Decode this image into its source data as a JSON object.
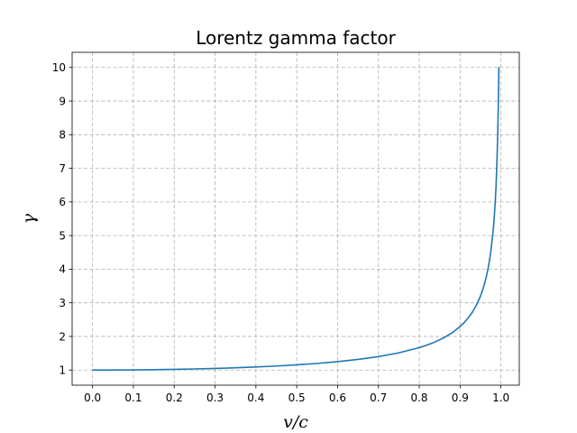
{
  "chart_data": {
    "type": "line",
    "title": "Lorentz gamma factor",
    "xlabel": "v/c",
    "ylabel": "γ",
    "xlim": [
      -0.05,
      1.045
    ],
    "ylim": [
      0.55,
      10.45
    ],
    "grid": true,
    "xticks": [
      0.0,
      0.1,
      0.2,
      0.3,
      0.4,
      0.5,
      0.6,
      0.7,
      0.8,
      0.9,
      1.0
    ],
    "xtick_labels": [
      "0.0",
      "0.1",
      "0.2",
      "0.3",
      "0.4",
      "0.5",
      "0.6",
      "0.7",
      "0.8",
      "0.9",
      "1.0"
    ],
    "yticks": [
      1,
      2,
      3,
      4,
      5,
      6,
      7,
      8,
      9,
      10
    ],
    "ytick_labels": [
      "1",
      "2",
      "3",
      "4",
      "5",
      "6",
      "7",
      "8",
      "9",
      "10"
    ],
    "series": [
      {
        "color": "#1f77b4",
        "x": [
          0.0,
          0.05,
          0.1,
          0.15,
          0.2,
          0.25,
          0.3,
          0.35,
          0.4,
          0.45,
          0.5,
          0.55,
          0.6,
          0.65,
          0.7,
          0.75,
          0.8,
          0.82,
          0.84,
          0.86,
          0.88,
          0.9,
          0.91,
          0.92,
          0.93,
          0.94,
          0.95,
          0.955,
          0.96,
          0.965,
          0.97,
          0.975,
          0.98,
          0.983,
          0.986,
          0.988,
          0.99,
          0.992,
          0.994,
          0.995
        ],
        "y": [
          1.0,
          1.0013,
          1.005,
          1.0114,
          1.0206,
          1.0328,
          1.0483,
          1.0675,
          1.0911,
          1.1198,
          1.1547,
          1.1974,
          1.25,
          1.3159,
          1.4003,
          1.5119,
          1.6667,
          1.7471,
          1.843,
          1.9596,
          2.1043,
          2.2942,
          2.4119,
          2.5516,
          2.7206,
          2.9312,
          3.2026,
          3.3715,
          3.5714,
          3.8131,
          4.1134,
          4.5004,
          5.0252,
          5.4246,
          5.9708,
          6.4606,
          7.0888,
          7.9214,
          9.1424,
          10.0125
        ]
      }
    ]
  }
}
